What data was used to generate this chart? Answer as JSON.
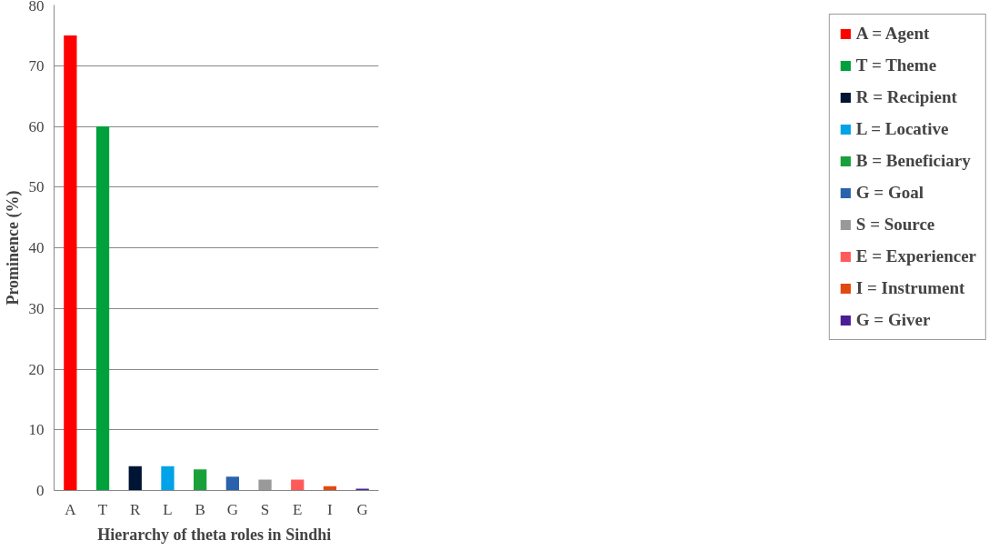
{
  "chart_data": {
    "type": "bar",
    "xlabel": "Hierarchy  of theta roles in Sindhi",
    "ylabel": "Prominence (%)",
    "categories": [
      "A",
      "T",
      "R",
      "L",
      "B",
      "G",
      "S",
      "E",
      "I",
      "G"
    ],
    "series": [
      {
        "name": "A = Agent",
        "color": "#ff0000",
        "values": [
          75,
          null,
          null,
          null,
          null,
          null,
          null,
          null,
          null,
          null
        ]
      },
      {
        "name": "T = Theme",
        "color": "#00a03c",
        "values": [
          null,
          60,
          null,
          null,
          null,
          null,
          null,
          null,
          null,
          null
        ]
      },
      {
        "name": "R = Recipient",
        "color": "#001433",
        "values": [
          null,
          null,
          4,
          null,
          null,
          null,
          null,
          null,
          null,
          null
        ]
      },
      {
        "name": "L = Locative",
        "color": "#00a2e8",
        "values": [
          null,
          null,
          null,
          4,
          null,
          null,
          null,
          null,
          null,
          null
        ]
      },
      {
        "name": "B = Beneficiary",
        "color": "#1aa03a",
        "values": [
          null,
          null,
          null,
          null,
          3.5,
          null,
          null,
          null,
          null,
          null
        ]
      },
      {
        "name": "G = Goal",
        "color": "#2a62ad",
        "values": [
          null,
          null,
          null,
          null,
          null,
          2.3,
          null,
          null,
          null,
          null
        ]
      },
      {
        "name": "S = Source",
        "color": "#999999",
        "values": [
          null,
          null,
          null,
          null,
          null,
          null,
          1.8,
          null,
          null,
          null
        ]
      },
      {
        "name": "E = Experiencer",
        "color": "#ff5a5a",
        "values": [
          null,
          null,
          null,
          null,
          null,
          null,
          null,
          1.8,
          null,
          null
        ]
      },
      {
        "name": "I = Instrument",
        "color": "#e04a10",
        "values": [
          null,
          null,
          null,
          null,
          null,
          null,
          null,
          null,
          0.7,
          null
        ]
      },
      {
        "name": "G = Giver",
        "color": "#4b1e96",
        "values": [
          null,
          null,
          null,
          null,
          null,
          null,
          null,
          null,
          null,
          0.3
        ]
      }
    ],
    "ylim": [
      0,
      80
    ],
    "yticks": [
      0,
      10,
      20,
      30,
      40,
      50,
      60,
      70,
      80
    ],
    "grid": "y",
    "legend": "right"
  }
}
